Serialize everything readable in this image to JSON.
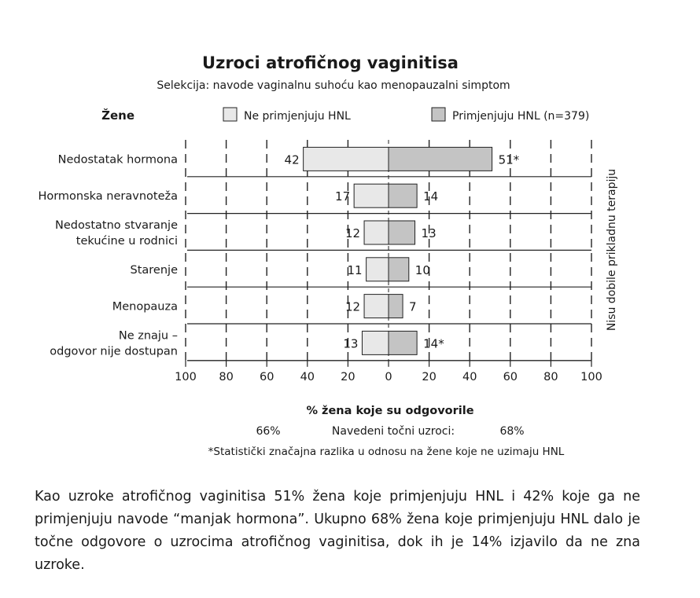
{
  "chart_data": {
    "type": "bar",
    "orientation": "horizontal-diverging",
    "title": "Uzroci atrofičnog vaginitisa",
    "subtitle": "Selekcija: navode vaginalnu suhoću kao menopauzalni simptom",
    "row_header": "Žene",
    "categories": [
      [
        "Nedostatak hormona"
      ],
      [
        "Hormonska neravnoteža"
      ],
      [
        "Nedostatno stvaranje",
        "tekućine u rodnici"
      ],
      [
        "Starenje"
      ],
      [
        "Menopauza"
      ],
      [
        "Ne znaju –",
        "odgovor nije dostupan"
      ]
    ],
    "series": [
      {
        "name": "Ne primjenjuju HNL",
        "side": "left",
        "color": "#e8e8e8",
        "values": [
          42,
          17,
          12,
          11,
          12,
          13
        ],
        "labels": [
          "42",
          "17",
          "12",
          "11",
          "12",
          "13"
        ]
      },
      {
        "name": "Primjenjuju HNL (n=379)",
        "side": "right",
        "color": "#c4c4c4",
        "values": [
          51,
          14,
          13,
          10,
          7,
          14
        ],
        "labels": [
          "51*",
          "14",
          "13",
          "10",
          "7",
          "14*"
        ]
      }
    ],
    "xticks": [
      "100",
      "80",
      "60",
      "40",
      "20",
      "0",
      "20",
      "40",
      "60",
      "80",
      "100"
    ],
    "xlim": [
      -100,
      100
    ],
    "xlabel": "% žena koje su odgovorile",
    "side_label": "Nisu dobile prikladnu terapiju",
    "summary": {
      "label": "Navedeni točni uzroci:",
      "left": "66%",
      "right": "68%"
    },
    "footnote": "*Statistički značajna razlika u odnosu na žene koje ne uzimaju HNL",
    "grid": "dashed-vertical"
  },
  "caption": "Kao uzroke atrofičnog vaginitisa 51% žena koje primjenjuju HNL i 42% koje ga ne primjenjuju navode “manjak hormona”. Ukupno 68% žena koje primjenjuju HNL dalo je točne odgovore o uzrocima atrofičnog vaginitisa, dok ih je 14% izjavilo da ne zna uzroke."
}
